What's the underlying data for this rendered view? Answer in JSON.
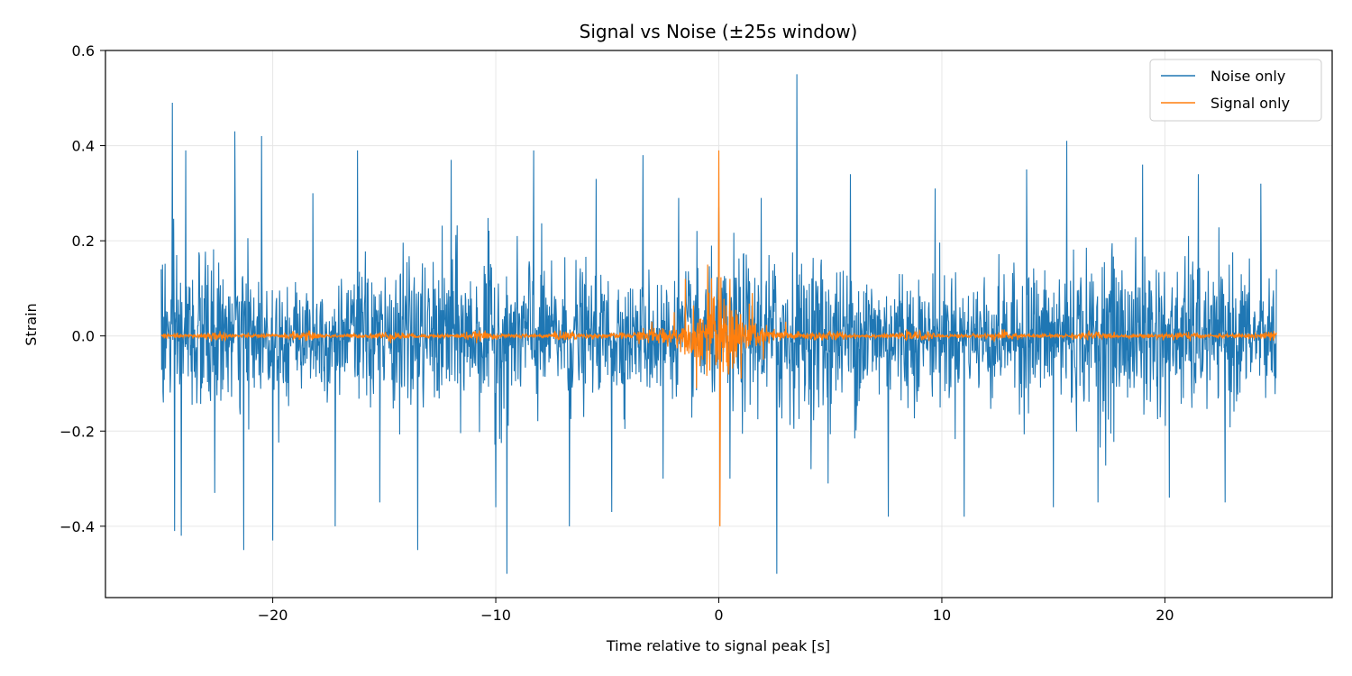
{
  "chart_data": {
    "type": "line",
    "title": "Signal vs Noise (±25s window)",
    "xlabel": "Time relative to signal peak [s]",
    "ylabel": "Strain",
    "xlim": [
      -27.5,
      27.5
    ],
    "ylim": [
      -0.55,
      0.6
    ],
    "xticks": [
      -20,
      -10,
      0,
      10,
      20
    ],
    "xtick_labels": [
      "−20",
      "−10",
      "0",
      "10",
      "20"
    ],
    "yticks": [
      -0.4,
      -0.2,
      0.0,
      0.2,
      0.4,
      0.6
    ],
    "ytick_labels": [
      "−0.4",
      "−0.2",
      "0.0",
      "0.2",
      "0.4",
      "0.6"
    ],
    "grid": true,
    "legend_position": "top-right",
    "series": [
      {
        "name": "Noise only",
        "color": "#1f77b4",
        "x": [
          -25,
          -24.5,
          -24.4,
          -24.1,
          -23.9,
          -22.6,
          -21.7,
          -21.3,
          -20.5,
          -20.0,
          -18.2,
          -17.2,
          -16.2,
          -15.2,
          -13.5,
          -12.0,
          -10.0,
          -9.5,
          -8.3,
          -6.7,
          -5.5,
          -4.8,
          -3.4,
          -2.5,
          -1.8,
          0.0,
          0.5,
          1.9,
          2.6,
          3.5,
          4.9,
          5.9,
          7.6,
          9.7,
          11.0,
          13.8,
          15.0,
          15.6,
          17.0,
          19.0,
          20.2,
          21.5,
          22.7,
          24.3,
          25.0
        ],
        "y": [
          0.14,
          0.49,
          -0.41,
          -0.42,
          0.39,
          -0.33,
          0.43,
          -0.45,
          0.42,
          -0.43,
          0.3,
          -0.4,
          0.39,
          -0.35,
          -0.45,
          0.37,
          -0.36,
          -0.5,
          0.39,
          -0.4,
          0.33,
          -0.37,
          0.38,
          -0.3,
          0.29,
          0.27,
          -0.3,
          0.29,
          -0.5,
          0.55,
          -0.31,
          0.34,
          -0.38,
          0.31,
          -0.38,
          0.35,
          -0.36,
          0.41,
          -0.35,
          0.36,
          -0.34,
          0.34,
          -0.35,
          0.32,
          0.14
        ],
        "noise_envelope_typical": 0.12
      },
      {
        "name": "Signal only",
        "color": "#ff7f0e",
        "x": [
          -25,
          -20,
          -15,
          -10,
          -5,
          -3,
          -2,
          -1.5,
          -1.0,
          -0.5,
          0.0,
          0.05,
          0.5,
          1.0,
          1.5,
          2.0,
          3.0,
          5.0,
          10,
          15,
          20,
          25
        ],
        "y": [
          0.0,
          0.005,
          0.005,
          0.01,
          0.015,
          0.03,
          0.05,
          0.12,
          -0.11,
          0.15,
          0.39,
          -0.4,
          0.12,
          -0.09,
          0.09,
          -0.05,
          0.03,
          0.02,
          0.01,
          0.008,
          0.005,
          0.0
        ]
      }
    ]
  }
}
